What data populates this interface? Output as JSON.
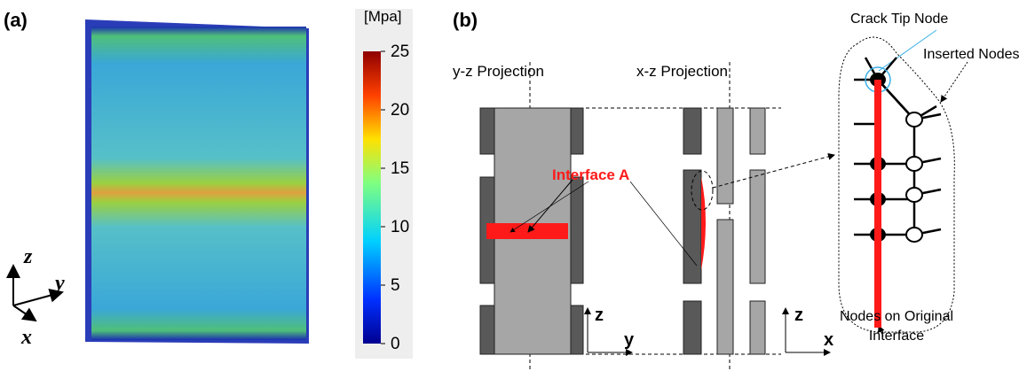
{
  "panel_a": {
    "label": "(a)",
    "unit": "[Mpa]",
    "colorbar": {
      "lim": [
        0,
        25
      ],
      "ticks": [
        0,
        5,
        10,
        15,
        20,
        25
      ]
    },
    "axes": {
      "z": "z",
      "y": "y",
      "x": "x"
    }
  },
  "panel_b": {
    "label": "(b)",
    "yz_projection": "y-z Projection",
    "xz_projection": "x-z Projection",
    "interface": "Interface A",
    "crack_tip": "Crack Tip Node",
    "inserted": "Inserted Nodes",
    "original": [
      "Nodes on Original",
      "Interface"
    ],
    "axes_yz": {
      "z": "z",
      "y": "y"
    },
    "axes_xz": {
      "z": "z",
      "x": "x"
    }
  }
}
